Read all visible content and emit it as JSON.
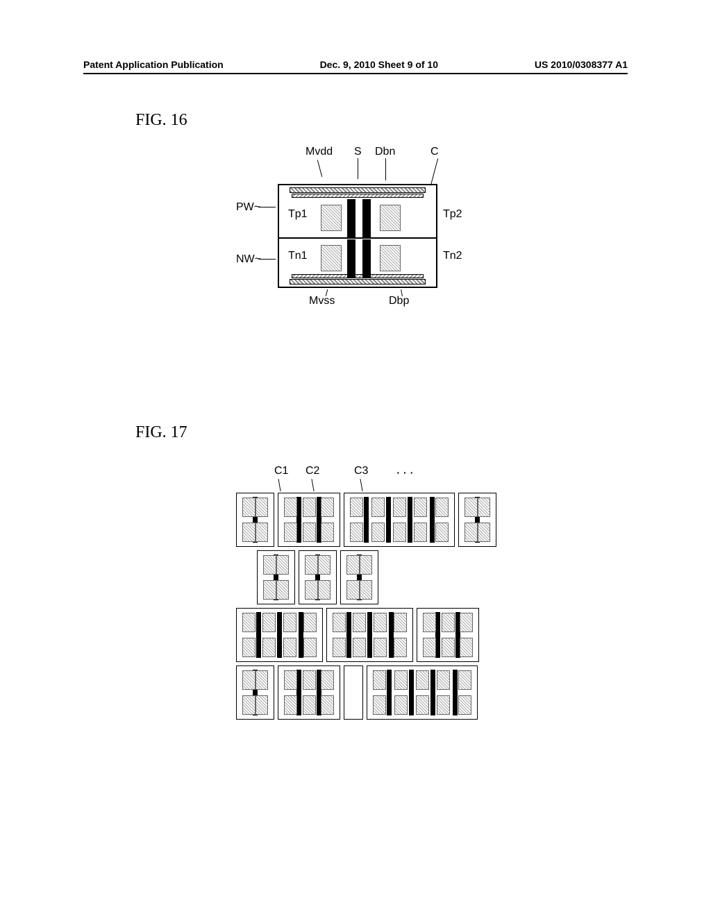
{
  "header": {
    "left": "Patent Application Publication",
    "center": "Dec. 9, 2010  Sheet 9 of 10",
    "right": "US 2010/0308377 A1"
  },
  "fig16": {
    "title": "FIG. 16",
    "labels": {
      "mvdd": "Mvdd",
      "s": "S",
      "dbn": "Dbn",
      "c": "C",
      "pw": "PW",
      "nw": "NW",
      "tp1": "Tp1",
      "tp2": "Tp2",
      "tn1": "Tn1",
      "tn2": "Tn2",
      "mvss": "Mvss",
      "dbp": "Dbp"
    }
  },
  "fig17": {
    "title": "FIG. 17",
    "labels": {
      "c1": "C1",
      "c2": "C2",
      "c3": "C3",
      "dots": "···"
    },
    "rows": [
      {
        "cells": [
          1,
          2,
          4,
          1
        ]
      },
      {
        "cells": [
          1,
          1,
          1
        ]
      },
      {
        "cells": [
          3,
          3,
          2
        ]
      },
      {
        "cells": [
          1,
          2,
          0,
          4
        ]
      }
    ]
  },
  "colors": {
    "black": "#000000",
    "hatch": "#aaaaaa",
    "white": "#ffffff"
  }
}
